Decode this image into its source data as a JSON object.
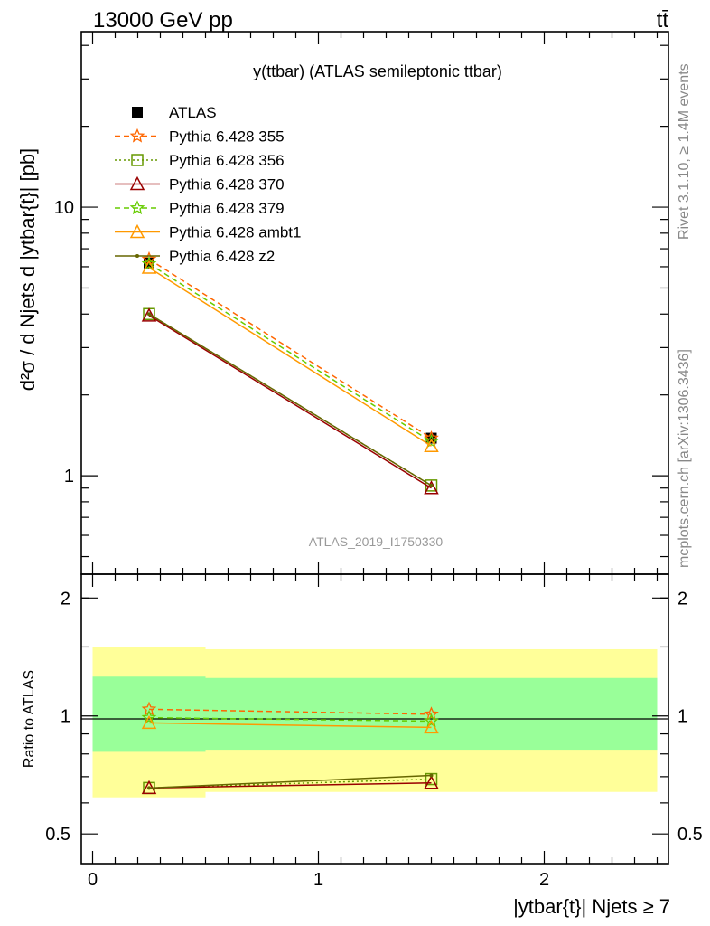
{
  "header": {
    "energy": "13000 GeV pp",
    "process": "tt̄"
  },
  "side": {
    "rivet": "Rivet 3.1.10, ≥ 1.4M events",
    "mcplots": "mcplots.cern.ch [arXiv:1306.3436]"
  },
  "chart_data": [
    {
      "type": "line",
      "title": "y(ttbar) (ATLAS semileptonic ttbar)",
      "watermark": "ATLAS_2019_I1750330",
      "ylabel": "d²σ / d Njets d |ytbar{t}| [pb]",
      "yscale": "log",
      "ylim": [
        0.43,
        45
      ],
      "xlim": [
        -0.05,
        2.55
      ],
      "y_ticks": [
        "1",
        "10"
      ],
      "legend_position": "top-left",
      "x": [
        0.25,
        1.5
      ],
      "bin_edges": [
        0,
        0.5,
        2.5
      ],
      "series": [
        {
          "name": "ATLAS",
          "values": [
            6.2,
            1.38
          ],
          "color": "#000000",
          "marker": "square"
        },
        {
          "name": "Pythia 6.428 355",
          "values": [
            6.4,
            1.38
          ],
          "color": "#ff6600",
          "marker": "star",
          "dash": "dashed"
        },
        {
          "name": "Pythia 6.428 356",
          "values": [
            4.0,
            0.92
          ],
          "color": "#669900",
          "marker": "open-square",
          "dash": "dotted"
        },
        {
          "name": "Pythia 6.428 370",
          "values": [
            3.95,
            0.9
          ],
          "color": "#990000",
          "marker": "open-triangle",
          "dash": "solid"
        },
        {
          "name": "Pythia 6.428 379",
          "values": [
            6.15,
            1.34
          ],
          "color": "#66cc00",
          "marker": "star",
          "dash": "dashed"
        },
        {
          "name": "Pythia 6.428 ambt1",
          "values": [
            5.95,
            1.29
          ],
          "color": "#ff9900",
          "marker": "open-triangle",
          "dash": "solid"
        },
        {
          "name": "Pythia 6.428 z2",
          "values": [
            4.0,
            0.92
          ],
          "color": "#666600",
          "marker": "dot",
          "dash": "solid"
        }
      ]
    },
    {
      "type": "line",
      "ylabel": "Ratio to ATLAS",
      "xlabel": "|ytbar{t}| Njets ≥ 7",
      "ylim": [
        0.42,
        2.3
      ],
      "xlim": [
        -0.05,
        2.55
      ],
      "x_ticks": [
        "0",
        "1",
        "2"
      ],
      "y_ticks": [
        "0.5",
        "1",
        "2"
      ],
      "x": [
        0.25,
        1.5
      ],
      "bands": {
        "stat_sys_total": [
          [
            0.62,
            1.5
          ],
          [
            0.64,
            1.48
          ]
        ],
        "stat": [
          [
            0.81,
            1.26
          ],
          [
            0.82,
            1.25
          ]
        ]
      },
      "series": [
        {
          "name": "Pythia 6.428 355",
          "values": [
            1.04,
            1.01
          ],
          "color": "#ff6600",
          "marker": "star",
          "dash": "dashed"
        },
        {
          "name": "Pythia 6.428 356",
          "values": [
            0.655,
            0.69
          ],
          "color": "#669900",
          "marker": "open-square",
          "dash": "dotted"
        },
        {
          "name": "Pythia 6.428 370",
          "values": [
            0.655,
            0.675
          ],
          "color": "#990000",
          "marker": "open-triangle",
          "dash": "solid"
        },
        {
          "name": "Pythia 6.428 379",
          "values": [
            0.99,
            0.97
          ],
          "color": "#66cc00",
          "marker": "star",
          "dash": "dashed"
        },
        {
          "name": "Pythia 6.428 ambt1",
          "values": [
            0.96,
            0.935
          ],
          "color": "#ff9900",
          "marker": "open-triangle",
          "dash": "solid"
        },
        {
          "name": "Pythia 6.428 z2",
          "values": [
            0.655,
            0.705
          ],
          "color": "#666600",
          "marker": "dot",
          "dash": "solid"
        }
      ]
    }
  ]
}
